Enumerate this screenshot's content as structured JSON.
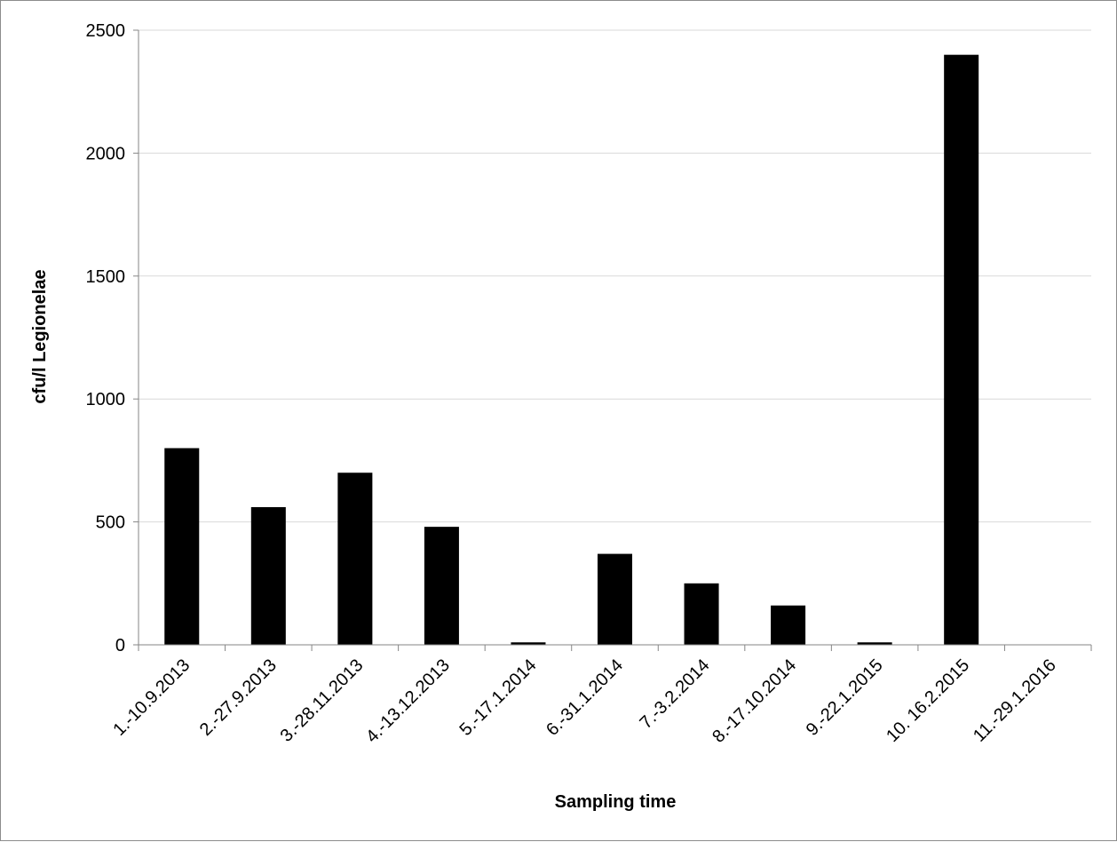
{
  "chart_data": {
    "type": "bar",
    "title": "",
    "xlabel": "Sampling time",
    "ylabel": "cfu/l Legionelae",
    "categories": [
      "1.-10.9.2013",
      "2.-27.9.2013",
      "3.-28.11.2013",
      "4.-13.12.2013",
      "5.-17.1.2014",
      "6.-31.1.2014",
      "7.-3.2.2014",
      "8.-17.10.2014",
      "9.-22.1.2015",
      "10. 16.2.2015",
      "11.-29.1.2016"
    ],
    "values": [
      800,
      560,
      700,
      480,
      10,
      370,
      250,
      160,
      10,
      2400,
      0
    ],
    "ylim": [
      0,
      2500
    ],
    "yticks": [
      0,
      500,
      1000,
      1500,
      2000,
      2500
    ],
    "grid": "horizontal",
    "legend": "none",
    "colors": {
      "bar": "#000000",
      "grid": "#d9d9d9",
      "axis": "#868686"
    }
  }
}
